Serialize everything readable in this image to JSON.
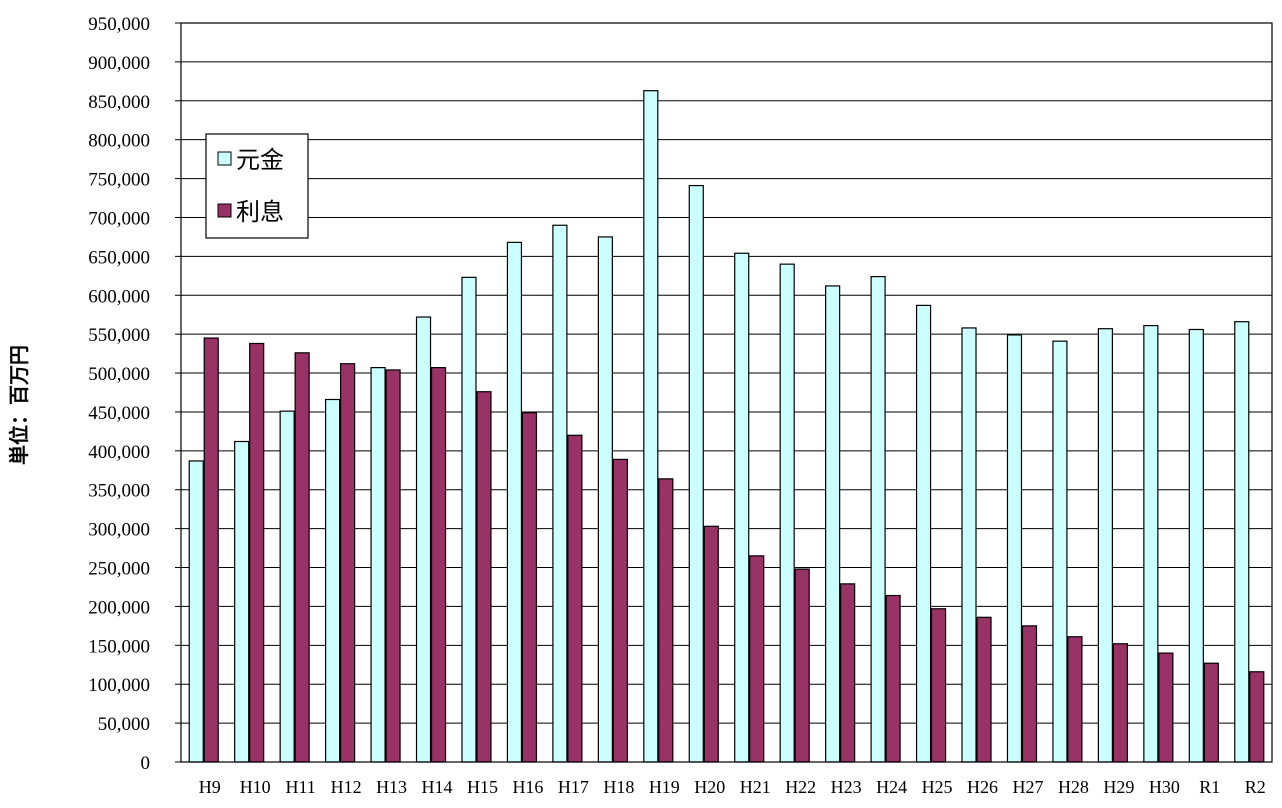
{
  "chart_data": {
    "type": "bar",
    "ylabel": "単位：百万円",
    "xlabel": "",
    "title": "",
    "ylim": [
      0,
      950000
    ],
    "ytick_step": 50000,
    "yticks": [
      "0",
      "50,000",
      "100,000",
      "150,000",
      "200,000",
      "250,000",
      "300,000",
      "350,000",
      "400,000",
      "450,000",
      "500,000",
      "550,000",
      "600,000",
      "650,000",
      "700,000",
      "750,000",
      "800,000",
      "850,000",
      "900,000",
      "950,000"
    ],
    "grid": true,
    "legend_position": "top-left",
    "categories": [
      "H9",
      "H10",
      "H11",
      "H12",
      "H13",
      "H14",
      "H15",
      "H16",
      "H17",
      "H18",
      "H19",
      "H20",
      "H21",
      "H22",
      "H23",
      "H24",
      "H25",
      "H26",
      "H27",
      "H28",
      "H29",
      "H30",
      "R1",
      "R2"
    ],
    "series": [
      {
        "name": "元金",
        "color": "#ccffff",
        "values": [
          387000,
          412000,
          451000,
          466000,
          507000,
          572000,
          623000,
          668000,
          690000,
          675000,
          863000,
          741000,
          654000,
          640000,
          612000,
          624000,
          587000,
          558000,
          549000,
          541000,
          557000,
          561000,
          556000,
          566000
        ]
      },
      {
        "name": "利息",
        "color": "#993366",
        "values": [
          545000,
          538000,
          526000,
          512000,
          504000,
          507000,
          476000,
          449000,
          420000,
          389000,
          364000,
          303000,
          265000,
          248000,
          229000,
          214000,
          197000,
          186000,
          175000,
          161000,
          152000,
          140000,
          127000,
          116000
        ]
      }
    ]
  }
}
